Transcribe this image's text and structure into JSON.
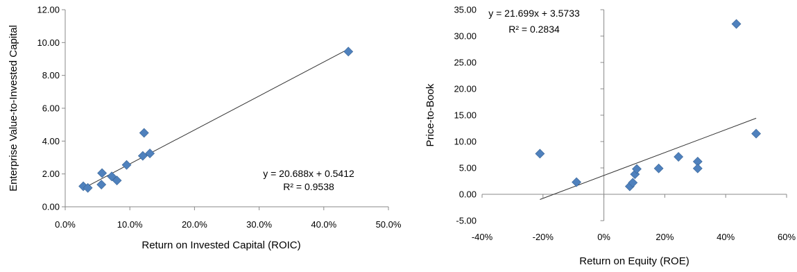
{
  "chart_data": [
    {
      "type": "scatter",
      "title": "",
      "xlabel": "Return on Invested Capital (ROIC)",
      "ylabel": "Enterprise Value-to-Invested Capital",
      "xlim": [
        0,
        0.5
      ],
      "ylim": [
        0,
        12
      ],
      "x_ticks": [
        "0.0%",
        "10.0%",
        "20.0%",
        "30.0%",
        "40.0%",
        "50.0%"
      ],
      "y_ticks": [
        "0.00",
        "2.00",
        "4.00",
        "6.00",
        "8.00",
        "10.00",
        "12.00"
      ],
      "grid": false,
      "marker_color": "#4F81BD",
      "trendline": {
        "slope": 20.688,
        "intercept": 0.5412
      },
      "equation": "y = 20.688x + 0.5412",
      "r_squared": "R² = 0.9538",
      "points": [
        {
          "x": 0.028,
          "y": 1.25
        },
        {
          "x": 0.035,
          "y": 1.15
        },
        {
          "x": 0.056,
          "y": 1.35
        },
        {
          "x": 0.057,
          "y": 2.05
        },
        {
          "x": 0.072,
          "y": 1.85
        },
        {
          "x": 0.08,
          "y": 1.6
        },
        {
          "x": 0.095,
          "y": 2.55
        },
        {
          "x": 0.12,
          "y": 3.1
        },
        {
          "x": 0.122,
          "y": 4.5
        },
        {
          "x": 0.131,
          "y": 3.25
        },
        {
          "x": 0.438,
          "y": 9.45
        }
      ]
    },
    {
      "type": "scatter",
      "title": "",
      "xlabel": "Return on Equity (ROE)",
      "ylabel": "Price-to-Book",
      "xlim": [
        -0.4,
        0.6
      ],
      "ylim": [
        -5,
        35
      ],
      "x_ticks": [
        "-40%",
        "-20%",
        "0%",
        "20%",
        "40%",
        "60%"
      ],
      "y_ticks": [
        "-5.00",
        "0.00",
        "5.00",
        "10.00",
        "15.00",
        "20.00",
        "25.00",
        "30.00",
        "35.00"
      ],
      "grid": false,
      "marker_color": "#4F81BD",
      "trendline": {
        "slope": 21.699,
        "intercept": 3.5733,
        "x_range": [
          -0.21,
          0.5
        ]
      },
      "equation": "y = 21.699x + 3.5733",
      "r_squared": "R² = 0.2834",
      "points": [
        {
          "x": -0.21,
          "y": 7.7
        },
        {
          "x": -0.09,
          "y": 2.3
        },
        {
          "x": 0.085,
          "y": 1.5
        },
        {
          "x": 0.095,
          "y": 2.2
        },
        {
          "x": 0.102,
          "y": 3.8
        },
        {
          "x": 0.108,
          "y": 4.8
        },
        {
          "x": 0.18,
          "y": 4.9
        },
        {
          "x": 0.245,
          "y": 7.1
        },
        {
          "x": 0.308,
          "y": 6.2
        },
        {
          "x": 0.308,
          "y": 4.9
        },
        {
          "x": 0.435,
          "y": 32.3
        },
        {
          "x": 0.5,
          "y": 11.5
        }
      ]
    }
  ]
}
